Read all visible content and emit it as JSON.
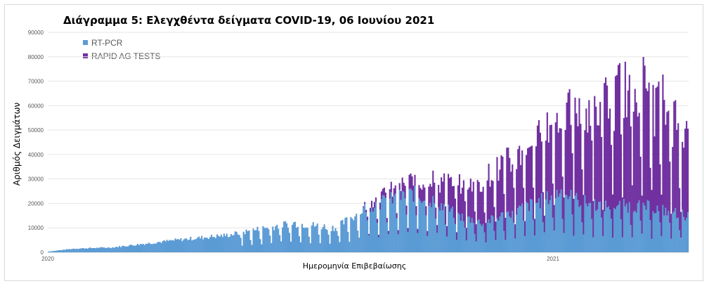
{
  "chart_data": {
    "type": "bar",
    "stacked": true,
    "title": "Διάγραμμα 5: Ελεγχθέντα δείγματα COVID-19, 06 Ιουνίου 2021",
    "xlabel": "Ημερομηνία Επιβεβαίωσης",
    "ylabel": "Αριθμός Δειγμάτων",
    "ylim": [
      0,
      90000
    ],
    "y_ticks": [
      "0",
      "10000",
      "20000",
      "30000",
      "40000",
      "50000",
      "60000",
      "70000",
      "80000",
      "90000"
    ],
    "x_tick_labels": [
      "2020",
      "2021"
    ],
    "legend_position": "top-left",
    "grid": true,
    "colors": {
      "rt_pcr": "#5b9bd5",
      "rapid_ag": "#7030a0"
    },
    "series": [
      {
        "name": "RT-PCR",
        "approx_daily_values": "phase_curve",
        "phases": [
          {
            "x": 0,
            "y": 300
          },
          {
            "x": 0.04,
            "y": 1500
          },
          {
            "x": 0.1,
            "y": 2000
          },
          {
            "x": 0.2,
            "y": 5000
          },
          {
            "x": 0.28,
            "y": 7000
          },
          {
            "x": 0.32,
            "y": 9000
          },
          {
            "x": 0.38,
            "y": 12000
          },
          {
            "x": 0.45,
            "y": 10000
          },
          {
            "x": 0.5,
            "y": 19000
          },
          {
            "x": 0.57,
            "y": 24000
          },
          {
            "x": 0.61,
            "y": 20000
          },
          {
            "x": 0.64,
            "y": 15000
          },
          {
            "x": 0.68,
            "y": 12000
          },
          {
            "x": 0.72,
            "y": 16000
          },
          {
            "x": 0.78,
            "y": 22000
          },
          {
            "x": 0.8,
            "y": 25000
          },
          {
            "x": 0.83,
            "y": 21000
          },
          {
            "x": 0.87,
            "y": 19000
          },
          {
            "x": 0.93,
            "y": 19000
          },
          {
            "x": 1.0,
            "y": 15000
          }
        ]
      },
      {
        "name": "RAPID AG TESTS",
        "approx_daily_values": "phase_curve",
        "phases": [
          {
            "x": 0,
            "y": 0
          },
          {
            "x": 0.49,
            "y": 0
          },
          {
            "x": 0.5,
            "y": 2000
          },
          {
            "x": 0.55,
            "y": 4000
          },
          {
            "x": 0.6,
            "y": 8000
          },
          {
            "x": 0.65,
            "y": 14000
          },
          {
            "x": 0.7,
            "y": 20000
          },
          {
            "x": 0.75,
            "y": 22000
          },
          {
            "x": 0.78,
            "y": 28000
          },
          {
            "x": 0.82,
            "y": 35000
          },
          {
            "x": 0.87,
            "y": 42000
          },
          {
            "x": 0.92,
            "y": 50000
          },
          {
            "x": 0.96,
            "y": 42000
          },
          {
            "x": 1.0,
            "y": 33000
          }
        ]
      }
    ]
  }
}
